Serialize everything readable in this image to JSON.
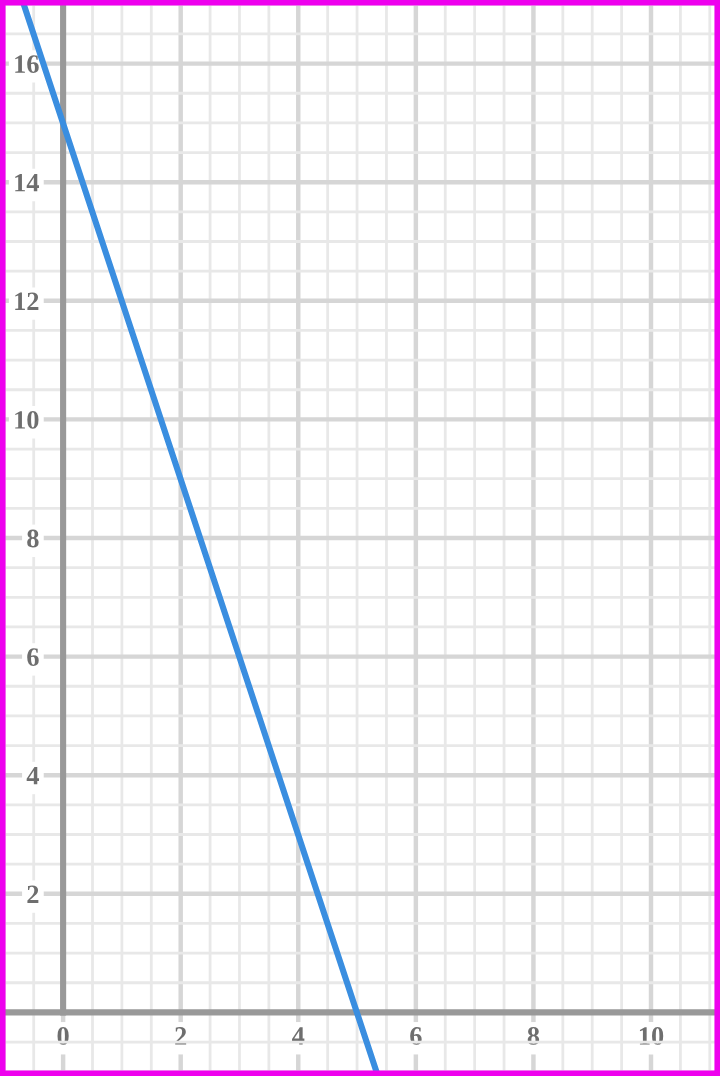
{
  "chart_data": {
    "type": "line",
    "series": [
      {
        "color": "#3a8ee0",
        "x": [
          -0.67,
          5.33
        ],
        "values": [
          17,
          -1
        ]
      }
    ],
    "xlim": [
      -1,
      11.1
    ],
    "ylim": [
      -1,
      17
    ],
    "xticks": [
      0,
      2,
      4,
      6,
      8,
      10
    ],
    "yticks": [
      2,
      4,
      6,
      8,
      10,
      12,
      14,
      16
    ],
    "grid": true,
    "line_style": "solid",
    "marker": "none"
  }
}
